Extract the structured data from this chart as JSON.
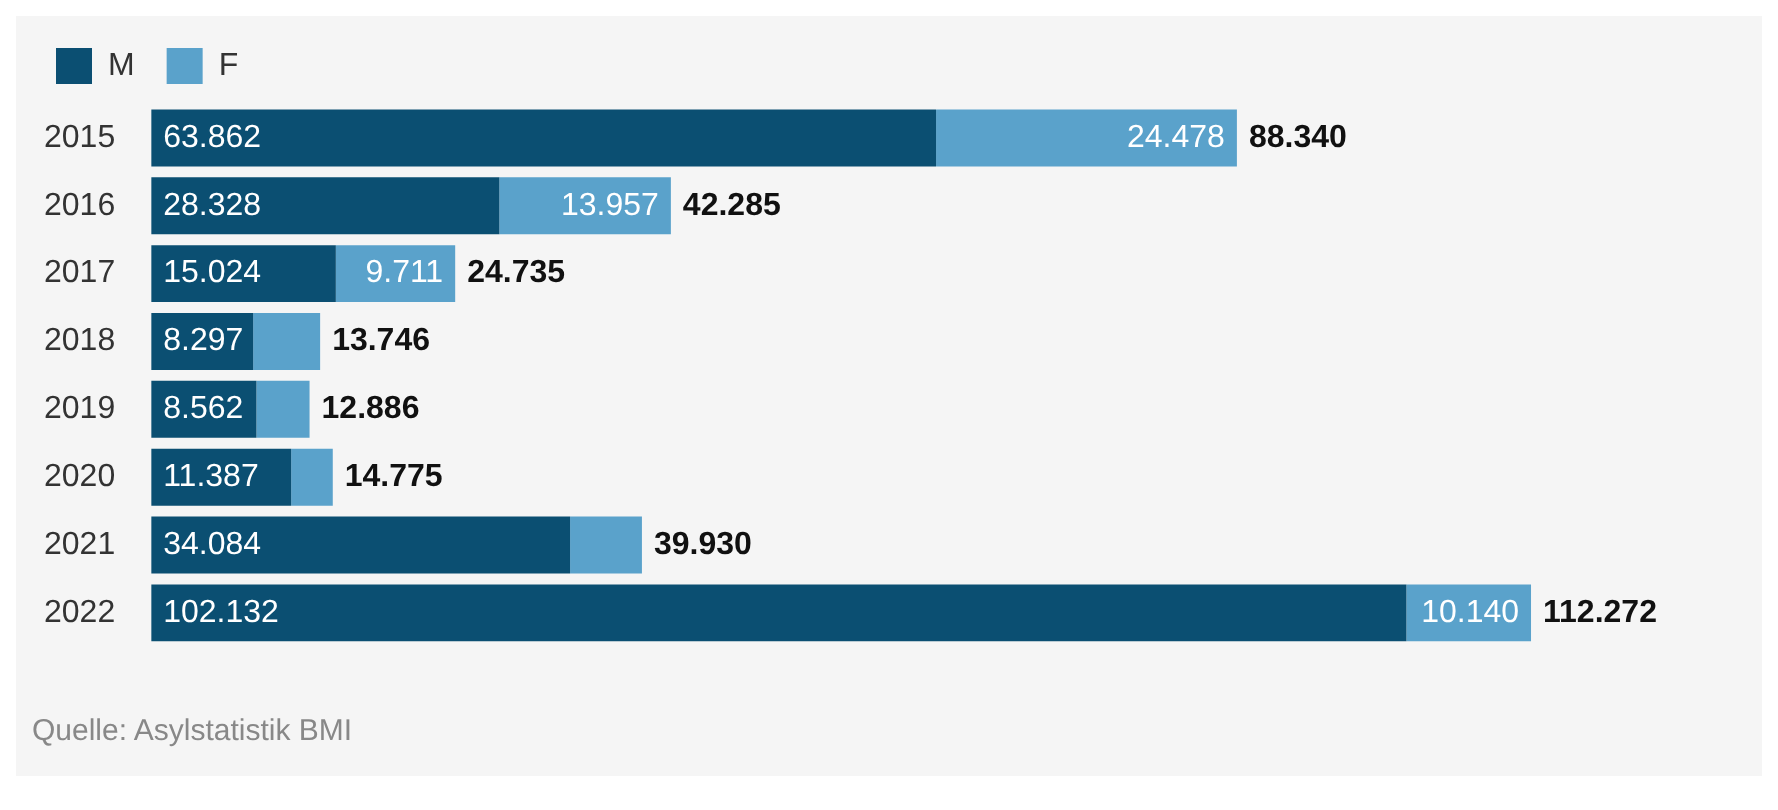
{
  "chart_data": {
    "type": "bar",
    "orientation": "horizontal",
    "stacked": true,
    "legend": "top left",
    "categories": [
      "2015",
      "2016",
      "2017",
      "2018",
      "2019",
      "2020",
      "2021",
      "2022"
    ],
    "series": [
      {
        "name": "M",
        "color": "#0b4f72",
        "values": [
          63862,
          28328,
          15024,
          8297,
          8562,
          11387,
          34084,
          102132
        ],
        "value_labels": [
          "63.862",
          "28.328",
          "15.024",
          "8.297",
          "8.562",
          "11.387",
          "34.084",
          "102.132"
        ]
      },
      {
        "name": "F",
        "color": "#5aa2cb",
        "values": [
          24478,
          13957,
          9711,
          5449,
          4324,
          3388,
          5846,
          10140
        ],
        "value_labels": [
          "24.478",
          "13.957",
          "9.711",
          null,
          null,
          null,
          null,
          "10.140"
        ]
      }
    ],
    "totals": [
      "88.340",
      "42.285",
      "24.735",
      "13.746",
      "12.886",
      "14.775",
      "39.930",
      "112.272"
    ],
    "grid": false,
    "annotations": [
      "Quelle: Asylstatistik BMI"
    ]
  }
}
